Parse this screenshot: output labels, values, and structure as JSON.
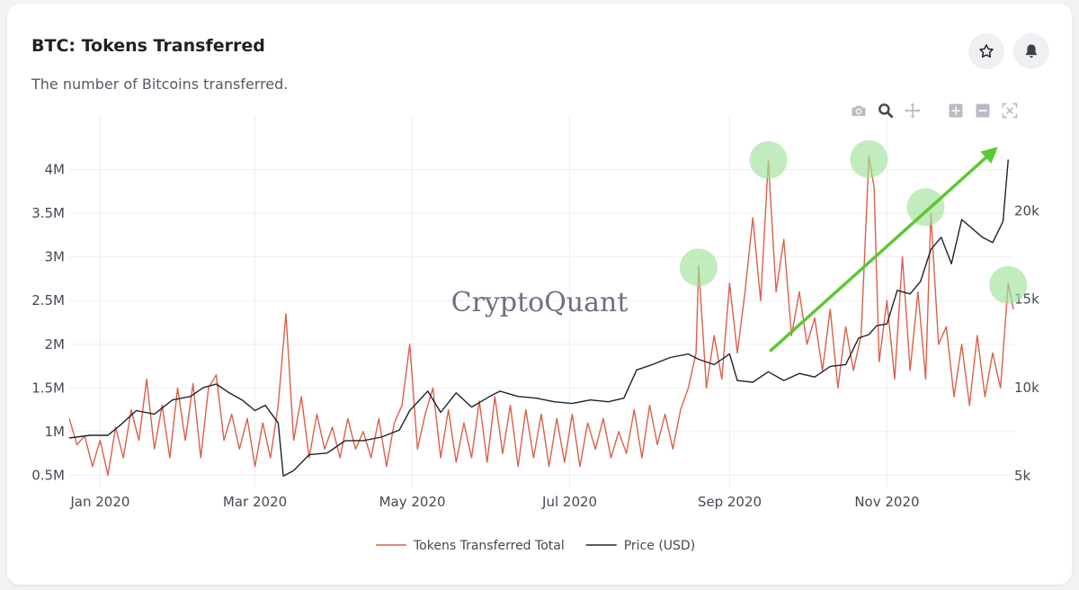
{
  "header": {
    "title": "BTC: Tokens Transferred",
    "subtitle": "The number of Bitcoins transferred."
  },
  "actions": {
    "star_icon": "star-icon",
    "bell_icon": "bell-icon"
  },
  "modebar": {
    "icons": [
      "camera-icon",
      "zoom-icon",
      "pan-icon",
      "zoom-in-icon",
      "zoom-out-icon",
      "autoscale-icon"
    ]
  },
  "watermark": "CryptoQuant",
  "colors": {
    "tokens": "#d9614a",
    "price": "#1d2330",
    "grid": "#eeeeee",
    "highlight": "#9fe29a",
    "arrow": "#5cc832"
  },
  "chart_data": {
    "type": "line",
    "x_ticks": [
      "Jan 2020",
      "Mar 2020",
      "May 2020",
      "Jul 2020",
      "Sep 2020",
      "Nov 2020"
    ],
    "y_left_ticks": [
      "0.5M",
      "1M",
      "1.5M",
      "2M",
      "2.5M",
      "3M",
      "3.5M",
      "4M"
    ],
    "y_left_values": [
      500000,
      1000000,
      1500000,
      2000000,
      2500000,
      3000000,
      3500000,
      4000000
    ],
    "y_left_range": [
      350000,
      4500000
    ],
    "y_right_ticks": [
      "5k",
      "10k",
      "15k",
      "20k"
    ],
    "y_right_values": [
      5000,
      10000,
      15000,
      20000
    ],
    "y_right_range": [
      4300,
      24800
    ],
    "x_range": [
      "2019-12-20",
      "2020-12-20"
    ],
    "grid": true,
    "legend_position": "bottom",
    "series": [
      {
        "name": "Tokens Transferred Total",
        "axis": "left",
        "points": [
          [
            "2019-12-20",
            1150000
          ],
          [
            "2019-12-23",
            850000
          ],
          [
            "2019-12-26",
            950000
          ],
          [
            "2019-12-29",
            600000
          ],
          [
            "2020-01-01",
            900000
          ],
          [
            "2020-01-04",
            500000
          ],
          [
            "2020-01-07",
            1050000
          ],
          [
            "2020-01-10",
            700000
          ],
          [
            "2020-01-13",
            1250000
          ],
          [
            "2020-01-16",
            900000
          ],
          [
            "2020-01-19",
            1600000
          ],
          [
            "2020-01-22",
            800000
          ],
          [
            "2020-01-25",
            1300000
          ],
          [
            "2020-01-28",
            700000
          ],
          [
            "2020-01-31",
            1500000
          ],
          [
            "2020-02-03",
            900000
          ],
          [
            "2020-02-06",
            1550000
          ],
          [
            "2020-02-09",
            700000
          ],
          [
            "2020-02-12",
            1500000
          ],
          [
            "2020-02-15",
            1650000
          ],
          [
            "2020-02-18",
            900000
          ],
          [
            "2020-02-21",
            1200000
          ],
          [
            "2020-02-24",
            800000
          ],
          [
            "2020-02-27",
            1150000
          ],
          [
            "2020-03-01",
            600000
          ],
          [
            "2020-03-04",
            1100000
          ],
          [
            "2020-03-07",
            700000
          ],
          [
            "2020-03-10",
            1300000
          ],
          [
            "2020-03-13",
            2350000
          ],
          [
            "2020-03-16",
            900000
          ],
          [
            "2020-03-19",
            1400000
          ],
          [
            "2020-03-22",
            700000
          ],
          [
            "2020-03-25",
            1200000
          ],
          [
            "2020-03-28",
            800000
          ],
          [
            "2020-03-31",
            1050000
          ],
          [
            "2020-04-03",
            700000
          ],
          [
            "2020-04-06",
            1150000
          ],
          [
            "2020-04-09",
            800000
          ],
          [
            "2020-04-12",
            1000000
          ],
          [
            "2020-04-15",
            700000
          ],
          [
            "2020-04-18",
            1150000
          ],
          [
            "2020-04-21",
            600000
          ],
          [
            "2020-04-24",
            1100000
          ],
          [
            "2020-04-27",
            1300000
          ],
          [
            "2020-04-30",
            2000000
          ],
          [
            "2020-05-03",
            800000
          ],
          [
            "2020-05-06",
            1200000
          ],
          [
            "2020-05-09",
            1500000
          ],
          [
            "2020-05-12",
            700000
          ],
          [
            "2020-05-15",
            1250000
          ],
          [
            "2020-05-18",
            650000
          ],
          [
            "2020-05-21",
            1100000
          ],
          [
            "2020-05-24",
            700000
          ],
          [
            "2020-05-27",
            1350000
          ],
          [
            "2020-05-30",
            650000
          ],
          [
            "2020-06-02",
            1400000
          ],
          [
            "2020-06-05",
            750000
          ],
          [
            "2020-06-08",
            1300000
          ],
          [
            "2020-06-11",
            600000
          ],
          [
            "2020-06-14",
            1250000
          ],
          [
            "2020-06-17",
            700000
          ],
          [
            "2020-06-20",
            1200000
          ],
          [
            "2020-06-23",
            600000
          ],
          [
            "2020-06-26",
            1150000
          ],
          [
            "2020-06-29",
            650000
          ],
          [
            "2020-07-02",
            1200000
          ],
          [
            "2020-07-05",
            600000
          ],
          [
            "2020-07-08",
            1100000
          ],
          [
            "2020-07-11",
            800000
          ],
          [
            "2020-07-14",
            1150000
          ],
          [
            "2020-07-17",
            700000
          ],
          [
            "2020-07-20",
            1000000
          ],
          [
            "2020-07-23",
            750000
          ],
          [
            "2020-07-26",
            1250000
          ],
          [
            "2020-07-29",
            700000
          ],
          [
            "2020-08-01",
            1300000
          ],
          [
            "2020-08-04",
            850000
          ],
          [
            "2020-08-07",
            1200000
          ],
          [
            "2020-08-10",
            800000
          ],
          [
            "2020-08-13",
            1250000
          ],
          [
            "2020-08-16",
            1500000
          ],
          [
            "2020-08-19",
            1900000
          ],
          [
            "2020-08-20",
            2900000
          ],
          [
            "2020-08-23",
            1500000
          ],
          [
            "2020-08-26",
            2100000
          ],
          [
            "2020-08-29",
            1600000
          ],
          [
            "2020-09-01",
            2700000
          ],
          [
            "2020-09-04",
            1900000
          ],
          [
            "2020-09-07",
            2600000
          ],
          [
            "2020-09-10",
            3450000
          ],
          [
            "2020-09-13",
            2500000
          ],
          [
            "2020-09-16",
            4100000
          ],
          [
            "2020-09-19",
            2600000
          ],
          [
            "2020-09-22",
            3200000
          ],
          [
            "2020-09-25",
            2100000
          ],
          [
            "2020-09-28",
            2600000
          ],
          [
            "2020-10-01",
            2000000
          ],
          [
            "2020-10-04",
            2300000
          ],
          [
            "2020-10-07",
            1700000
          ],
          [
            "2020-10-10",
            2400000
          ],
          [
            "2020-10-13",
            1500000
          ],
          [
            "2020-10-16",
            2200000
          ],
          [
            "2020-10-19",
            1700000
          ],
          [
            "2020-10-22",
            2100000
          ],
          [
            "2020-10-25",
            4150000
          ],
          [
            "2020-10-27",
            3800000
          ],
          [
            "2020-10-29",
            1800000
          ],
          [
            "2020-11-01",
            2500000
          ],
          [
            "2020-11-04",
            1600000
          ],
          [
            "2020-11-07",
            3000000
          ],
          [
            "2020-11-10",
            1700000
          ],
          [
            "2020-11-13",
            2600000
          ],
          [
            "2020-11-16",
            1600000
          ],
          [
            "2020-11-18",
            3500000
          ],
          [
            "2020-11-21",
            2000000
          ],
          [
            "2020-11-24",
            2200000
          ],
          [
            "2020-11-27",
            1400000
          ],
          [
            "2020-11-30",
            2000000
          ],
          [
            "2020-12-03",
            1300000
          ],
          [
            "2020-12-06",
            2100000
          ],
          [
            "2020-12-09",
            1400000
          ],
          [
            "2020-12-12",
            1900000
          ],
          [
            "2020-12-15",
            1500000
          ],
          [
            "2020-12-18",
            2700000
          ],
          [
            "2020-12-20",
            2400000
          ]
        ]
      },
      {
        "name": "Price (USD)",
        "axis": "right",
        "points": [
          [
            "2019-12-20",
            7150
          ],
          [
            "2019-12-28",
            7300
          ],
          [
            "2020-01-04",
            7300
          ],
          [
            "2020-01-09",
            7900
          ],
          [
            "2020-01-15",
            8700
          ],
          [
            "2020-01-22",
            8500
          ],
          [
            "2020-01-29",
            9300
          ],
          [
            "2020-02-05",
            9500
          ],
          [
            "2020-02-10",
            10000
          ],
          [
            "2020-02-15",
            10200
          ],
          [
            "2020-02-20",
            9700
          ],
          [
            "2020-02-25",
            9300
          ],
          [
            "2020-03-01",
            8700
          ],
          [
            "2020-03-05",
            9000
          ],
          [
            "2020-03-10",
            8000
          ],
          [
            "2020-03-12",
            5000
          ],
          [
            "2020-03-16",
            5300
          ],
          [
            "2020-03-22",
            6200
          ],
          [
            "2020-03-29",
            6300
          ],
          [
            "2020-04-05",
            7000
          ],
          [
            "2020-04-12",
            7000
          ],
          [
            "2020-04-19",
            7200
          ],
          [
            "2020-04-26",
            7600
          ],
          [
            "2020-04-30",
            8700
          ],
          [
            "2020-05-07",
            9800
          ],
          [
            "2020-05-12",
            8600
          ],
          [
            "2020-05-18",
            9700
          ],
          [
            "2020-05-24",
            8900
          ],
          [
            "2020-05-31",
            9500
          ],
          [
            "2020-06-04",
            9800
          ],
          [
            "2020-06-11",
            9500
          ],
          [
            "2020-06-18",
            9400
          ],
          [
            "2020-06-25",
            9200
          ],
          [
            "2020-07-02",
            9100
          ],
          [
            "2020-07-09",
            9300
          ],
          [
            "2020-07-16",
            9200
          ],
          [
            "2020-07-22",
            9400
          ],
          [
            "2020-07-27",
            11000
          ],
          [
            "2020-08-02",
            11300
          ],
          [
            "2020-08-09",
            11700
          ],
          [
            "2020-08-16",
            11900
          ],
          [
            "2020-08-20",
            11600
          ],
          [
            "2020-08-26",
            11300
          ],
          [
            "2020-09-01",
            11900
          ],
          [
            "2020-09-04",
            10400
          ],
          [
            "2020-09-10",
            10300
          ],
          [
            "2020-09-16",
            10900
          ],
          [
            "2020-09-22",
            10400
          ],
          [
            "2020-09-28",
            10800
          ],
          [
            "2020-10-04",
            10600
          ],
          [
            "2020-10-10",
            11200
          ],
          [
            "2020-10-16",
            11300
          ],
          [
            "2020-10-21",
            12800
          ],
          [
            "2020-10-25",
            13000
          ],
          [
            "2020-10-28",
            13500
          ],
          [
            "2020-11-01",
            13600
          ],
          [
            "2020-11-05",
            15500
          ],
          [
            "2020-11-10",
            15300
          ],
          [
            "2020-11-14",
            16000
          ],
          [
            "2020-11-18",
            17800
          ],
          [
            "2020-11-22",
            18500
          ],
          [
            "2020-11-26",
            17000
          ],
          [
            "2020-11-30",
            19500
          ],
          [
            "2020-12-04",
            19000
          ],
          [
            "2020-12-08",
            18500
          ],
          [
            "2020-12-12",
            18200
          ],
          [
            "2020-12-16",
            19400
          ],
          [
            "2020-12-18",
            22900
          ]
        ]
      }
    ],
    "annotations": {
      "highlight_circles": [
        [
          "2020-08-20",
          2880000
        ],
        [
          "2020-09-16",
          4110000
        ],
        [
          "2020-10-25",
          4120000
        ],
        [
          "2020-11-16",
          3570000
        ],
        [
          "2020-12-18",
          2680000
        ]
      ],
      "trend_arrow": [
        [
          "2020-09-17",
          1930000
        ],
        [
          "2020-12-14",
          4260000
        ]
      ]
    },
    "legend": [
      "Tokens Transferred Total",
      "Price (USD)"
    ]
  }
}
